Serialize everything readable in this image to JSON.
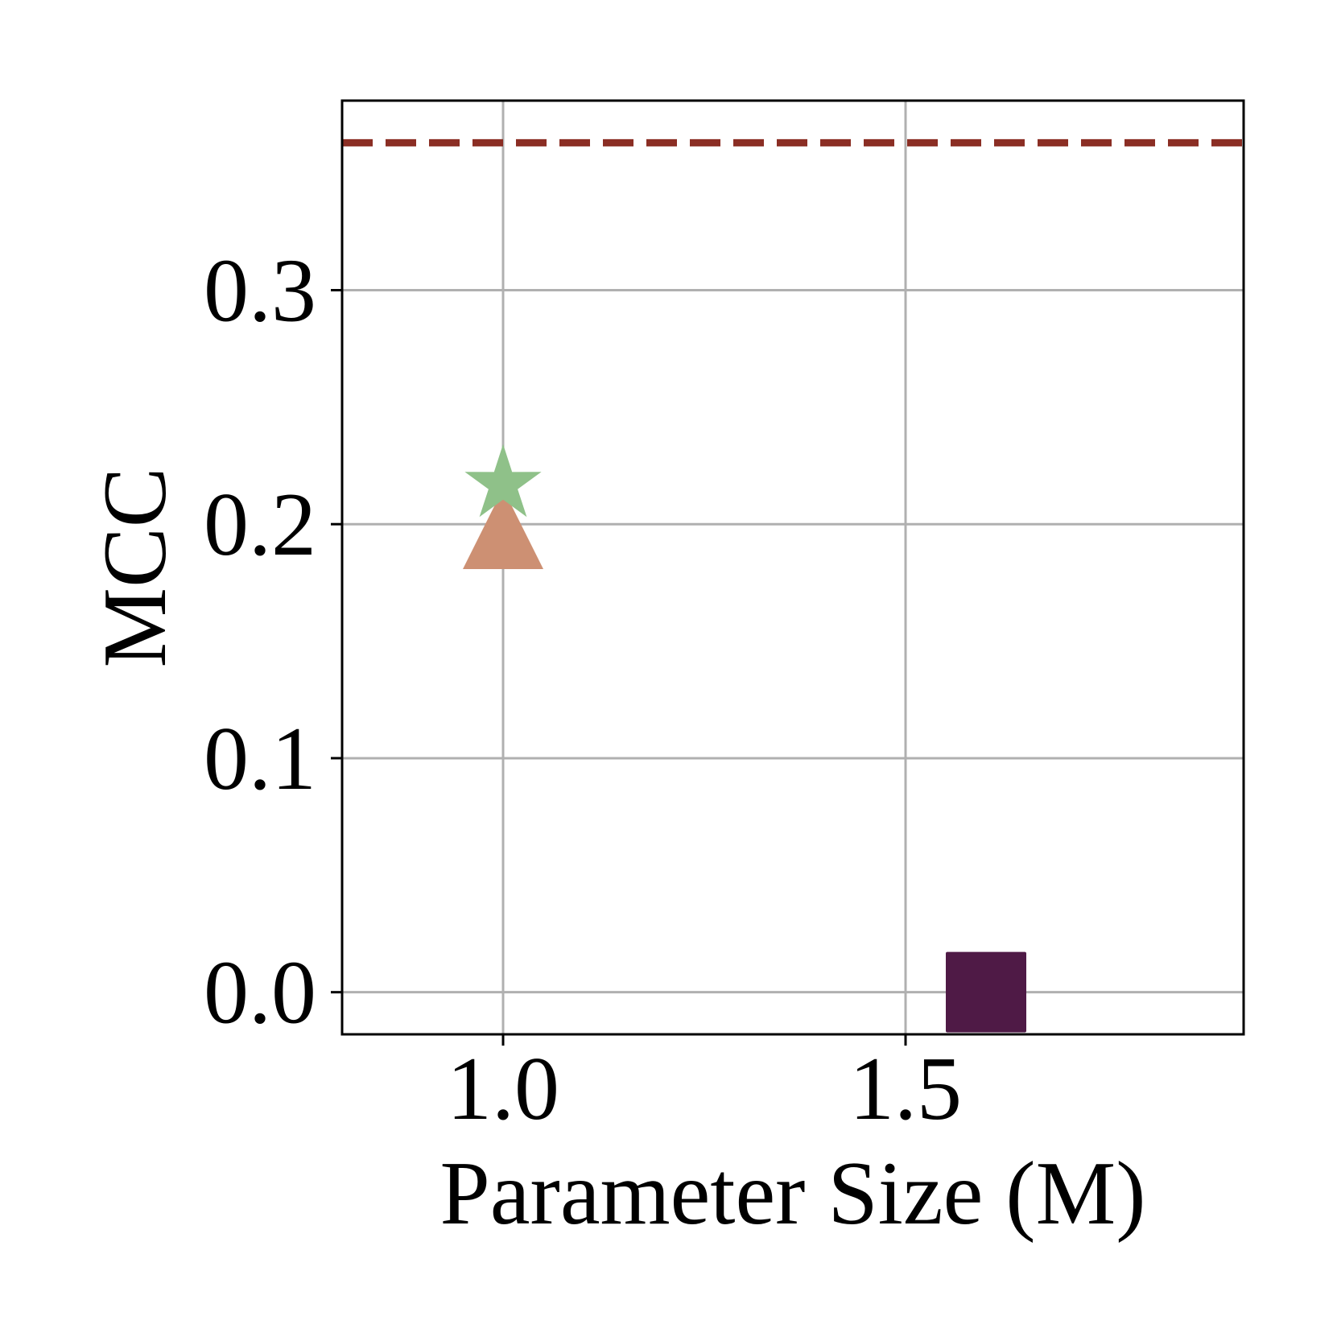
{
  "chart_data": {
    "type": "scatter",
    "xlabel": "Parameter Size (M)",
    "ylabel": "MCC",
    "xlim": [
      0.8,
      1.92
    ],
    "ylim": [
      -0.018,
      0.381
    ],
    "x_ticks": [
      {
        "value": 1.0,
        "label": "1.0"
      },
      {
        "value": 1.5,
        "label": "1.5"
      }
    ],
    "y_ticks": [
      {
        "value": 0.0,
        "label": "0.0"
      },
      {
        "value": 0.1,
        "label": "0.1"
      },
      {
        "value": 0.2,
        "label": "0.2"
      },
      {
        "value": 0.3,
        "label": "0.3"
      }
    ],
    "grid": true,
    "legend": "none",
    "points": [
      {
        "x": 1.0,
        "y": 0.198,
        "marker": "triangle",
        "color": "#cd9073"
      },
      {
        "x": 1.0,
        "y": 0.217,
        "marker": "star",
        "color": "#8fc189"
      },
      {
        "x": 1.6,
        "y": 0.0,
        "marker": "square",
        "color": "#4f1a46"
      }
    ],
    "reference_lines": [
      {
        "orientation": "horizontal",
        "y": 0.363,
        "style": "dashed",
        "color": "#8b2e24"
      }
    ]
  }
}
